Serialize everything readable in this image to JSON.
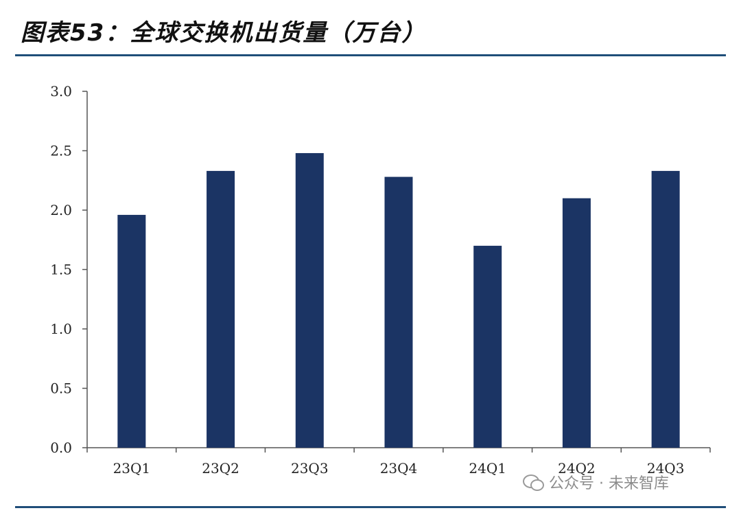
{
  "figure": {
    "title": "图表53：全球交换机出货量（万台）"
  },
  "watermark": {
    "icon": "wechat-icon",
    "text": "公众号 · 未来智库"
  },
  "chart_data": {
    "type": "bar",
    "title": "",
    "xlabel": "",
    "ylabel": "",
    "categories": [
      "23Q1",
      "23Q2",
      "23Q3",
      "23Q4",
      "24Q1",
      "24Q2",
      "24Q3"
    ],
    "values": [
      1.96,
      2.33,
      2.48,
      2.28,
      1.7,
      2.1,
      2.33
    ],
    "ylim": [
      0,
      3.0
    ],
    "yticks": [
      "0.0",
      "0.5",
      "1.0",
      "1.5",
      "2.0",
      "2.5",
      "3.0"
    ],
    "yticks_values": [
      0,
      0.5,
      1.0,
      1.5,
      2.0,
      2.5,
      3.0
    ],
    "bar_color": "#1b3464",
    "axis_color": "#555555",
    "grid": false,
    "legend": "none"
  }
}
